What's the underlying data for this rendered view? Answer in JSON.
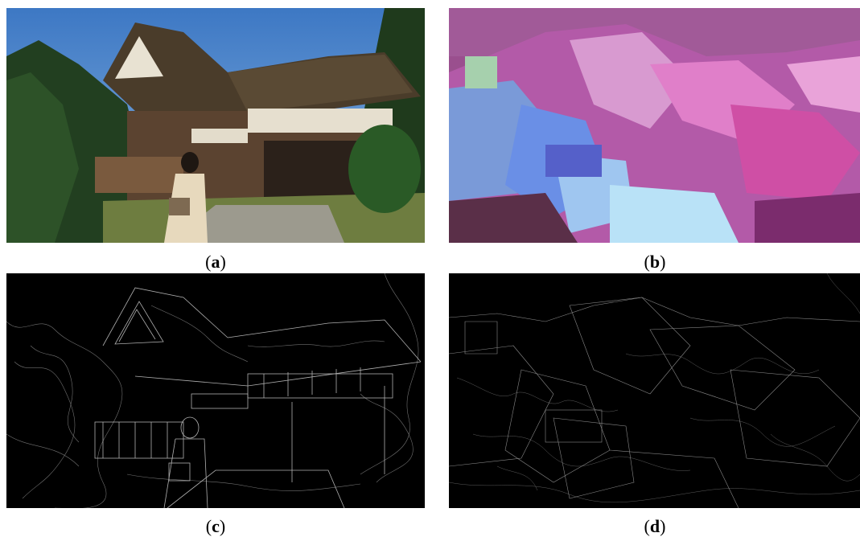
{
  "figure": {
    "panels": [
      {
        "id": "a",
        "label": "a",
        "description_kind": "photo-original"
      },
      {
        "id": "b",
        "label": "b",
        "description_kind": "photo-distorted"
      },
      {
        "id": "c",
        "label": "c",
        "description_kind": "edge-map-original"
      },
      {
        "id": "d",
        "label": "d",
        "description_kind": "edge-map-distorted"
      }
    ]
  }
}
